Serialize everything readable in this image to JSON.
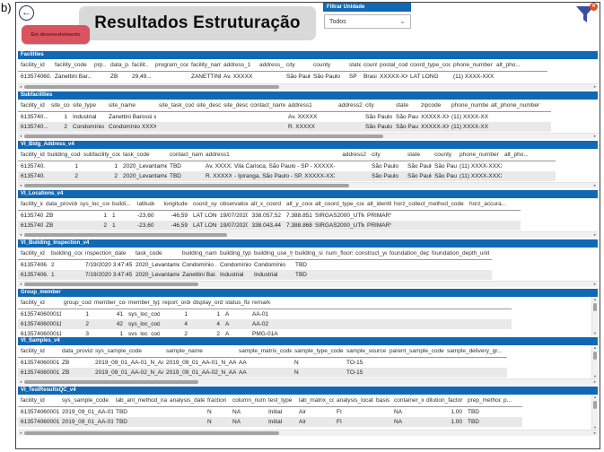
{
  "page_label": "b)",
  "header": {
    "title": "Resultados Estruturação",
    "status_badge": "Em desenvolvimento",
    "filter_label": "Filtrar Unidade",
    "filter_value": "Todos",
    "back_icon": "back-arrow",
    "filter_icon": "funnel-with-clear-badge"
  },
  "colors": {
    "section_bar": "#1169b5",
    "badge_bg": "#d95460",
    "badge_text": "#7c1322",
    "title_bg": "#d9d9d9",
    "funnel": "#3a4fa3",
    "funnel_badge": "#e4511e",
    "row_alt": "#e9e9e9"
  },
  "tables": {
    "facilities": {
      "title": "Facilities",
      "headers": [
        "facility_id",
        "facility_code",
        "prp..",
        "data_p..",
        "facilit..",
        "program_code",
        "facility_name",
        "address_1",
        "address_2",
        "city",
        "county",
        "state",
        "country",
        "postal_code",
        "coord_type_code",
        "phone_number",
        "alt_pho..."
      ],
      "rows": [
        [
          "613574060...",
          "Zanettini Bar...",
          "",
          "ZB",
          "29,49...",
          "",
          "ZANETTINI...",
          "Av. XXXXX",
          "",
          "São Paulo",
          "São Paulo",
          "SP",
          "Brasil",
          "XXXXX-XXX",
          "LAT LONG",
          "(11) XXXX-XXXX",
          ""
        ]
      ]
    },
    "subfacilities": {
      "title": "Subfacilities",
      "headers": [
        "facility_id",
        "site_code",
        "site_type",
        "site_name",
        "site_task_code",
        "site_desc1",
        "site_desc2",
        "contact_name",
        "address1",
        "address2",
        "city",
        "state",
        "zipcode",
        "phone_number",
        "alt_phone_number"
      ],
      "rows": [
        [
          "6135740...",
          "1",
          "Industrial",
          "Zanettini Barossi s...",
          "",
          "",
          "",
          "",
          "Av. XXXXX",
          "",
          "São Paulo",
          "São Paulo",
          "XXXXX-XXX",
          "(11) XXXX-XXXX",
          ""
        ],
        [
          "6135740...",
          "2",
          "Condomínio",
          "Condomínio XXXXX",
          "",
          "",
          "",
          "",
          "R. XXXXX",
          "",
          "São Paulo",
          "São Paulo",
          "XXXXX-XXX",
          "(11) XXXX-XXXX",
          ""
        ]
      ]
    },
    "bldg_address": {
      "title": "VI_Bldg_Address_v4",
      "headers": [
        "facility_id",
        "building_code",
        "subfacility_code",
        "task_code",
        "contact_name",
        "address1",
        "",
        "address2",
        "city",
        "state",
        "county",
        "phone_number",
        "alt_pho..."
      ],
      "rows": [
        [
          "6135740...",
          "1",
          "1",
          "2020_Levantamento",
          "TBD",
          "Av. XXXXX",
          "Vila Carioca, São Paulo - SP - XXXXX-XXX",
          "",
          "São Paulo",
          "São Paulo",
          "São Paulo",
          "(11) XXXX-XXXX",
          ""
        ],
        [
          "6135740...",
          "2",
          "2",
          "2020_Levantamento",
          "TBD",
          "R. XXXXX",
          "- Ipiranga, São Paulo - SP, XXXXX-XXX",
          "",
          "São Paulo",
          "São Paulo",
          "São Paulo",
          "(11) XXXX-XXXX",
          ""
        ]
      ]
    },
    "locations": {
      "title": "VI_Locations_v4",
      "headers": [
        "facility_id",
        "data_provider",
        "sys_loc_code",
        "buildi...",
        "latitude",
        "longitude",
        "coord_sys_desc",
        "observation_...",
        "alt_x_coord",
        "alt_y_coord",
        "alt_coord_type_code",
        "alt_identifier",
        "horz_collect_method_code",
        "horz_accura..."
      ],
      "rows": [
        [
          "6135740...",
          "ZB",
          "1",
          "1",
          "-23,60",
          "-46,59",
          "LAT LONG",
          "19/07/2020 ...",
          "338.057,52",
          "7.388.851,13",
          "SIRGAS2000_UTM_23S",
          "PRIMARY",
          "",
          ""
        ],
        [
          "6135740...",
          "ZB",
          "2",
          "1",
          "-23,60",
          "-46,59",
          "LAT LONG",
          "19/07/2020 ...",
          "338.043,44",
          "7.388.868,67",
          "SIRGAS2000_UTM_23S",
          "PRIMARY",
          "",
          ""
        ]
      ]
    },
    "building_inspection": {
      "title": "VI_Building_Inspection_v4",
      "headers": [
        "facility_id",
        "building_code",
        "inspection_date",
        "task_code",
        "building_name",
        "building_type",
        "building_use_type",
        "building_size",
        "num_floors",
        "construct_year",
        "foundation_depth",
        "foundation_depth_unit"
      ],
      "rows": [
        [
          "61357406...",
          "2",
          "7/19/2020 3:47:45 PM",
          "2020_Levantamento",
          "Condomínio ...",
          "Condomínio",
          "Condomínio",
          "TBD",
          "",
          "",
          "",
          ""
        ],
        [
          "61357406...",
          "1",
          "7/19/2020 3:47:45 PM",
          "2020_Levantamento",
          "Zanettini Bar...",
          "Industrial",
          "Industrial",
          "TBD",
          "",
          "",
          "",
          ""
        ]
      ]
    },
    "group_member": {
      "title": "Group_member",
      "headers": [
        "facility_id",
        "group_code",
        "member_code",
        "member_type",
        "report_order",
        "display_order",
        "status_flag",
        "remark",
        ""
      ],
      "rows": [
        [
          "61357406000110",
          "1",
          "41",
          "sys_loc_code",
          "1",
          "1",
          "A",
          "AA-01",
          ""
        ],
        [
          "61357406000110",
          "2",
          "42",
          "sys_loc_code",
          "4",
          "4",
          "A",
          "AA-02",
          ""
        ],
        [
          "61357406000110",
          "3",
          "1",
          "sys_loc_code",
          "2",
          "2",
          "A",
          "PMG-01A",
          ""
        ]
      ]
    },
    "samples": {
      "title": "VI_Samples_v4",
      "headers": [
        "facility_id",
        "data_provider",
        "sys_sample_code",
        "sample_name",
        "sample_matrix_code",
        "sample_type_code",
        "sample_source",
        "parent_sample_code",
        "sample_delivery_gr..."
      ],
      "rows": [
        [
          "61357406000110",
          "ZB",
          "2019_09_01_AA-01_N_AA",
          "2019_09_01_AA-01_N_AA",
          "AA",
          "N",
          "TO-15",
          "",
          ""
        ],
        [
          "61357406000110",
          "ZB",
          "2019_09_01_AA-02_N_AA",
          "2019_09_01_AA-02_N_AA",
          "AA",
          "N",
          "TO-15",
          "",
          ""
        ]
      ]
    },
    "testresults": {
      "title": "VI_TestResultsQC_v4",
      "headers": [
        "facility_id",
        "sys_sample_code",
        "lab_anl_method_name",
        "analysis_date",
        "fraction",
        "column_number",
        "test_type",
        "lab_matrix_code",
        "analysis_location",
        "basis",
        "container_id",
        "dilution_factor",
        "prep_method",
        "p..."
      ],
      "rows": [
        [
          "61357406000110",
          "2019_09_01_AA-01_N_AA",
          "TBD",
          "",
          "N",
          "NA",
          "Initial",
          "Air",
          "FI",
          "",
          "NA",
          "1.00",
          "TBD",
          ""
        ],
        [
          "61357406000110",
          "2019_09_01_AA-01_N_AA",
          "TBD",
          "",
          "N",
          "NA",
          "Initial",
          "Air",
          "FI",
          "",
          "NA",
          "1.00",
          "TBD",
          ""
        ]
      ]
    }
  }
}
